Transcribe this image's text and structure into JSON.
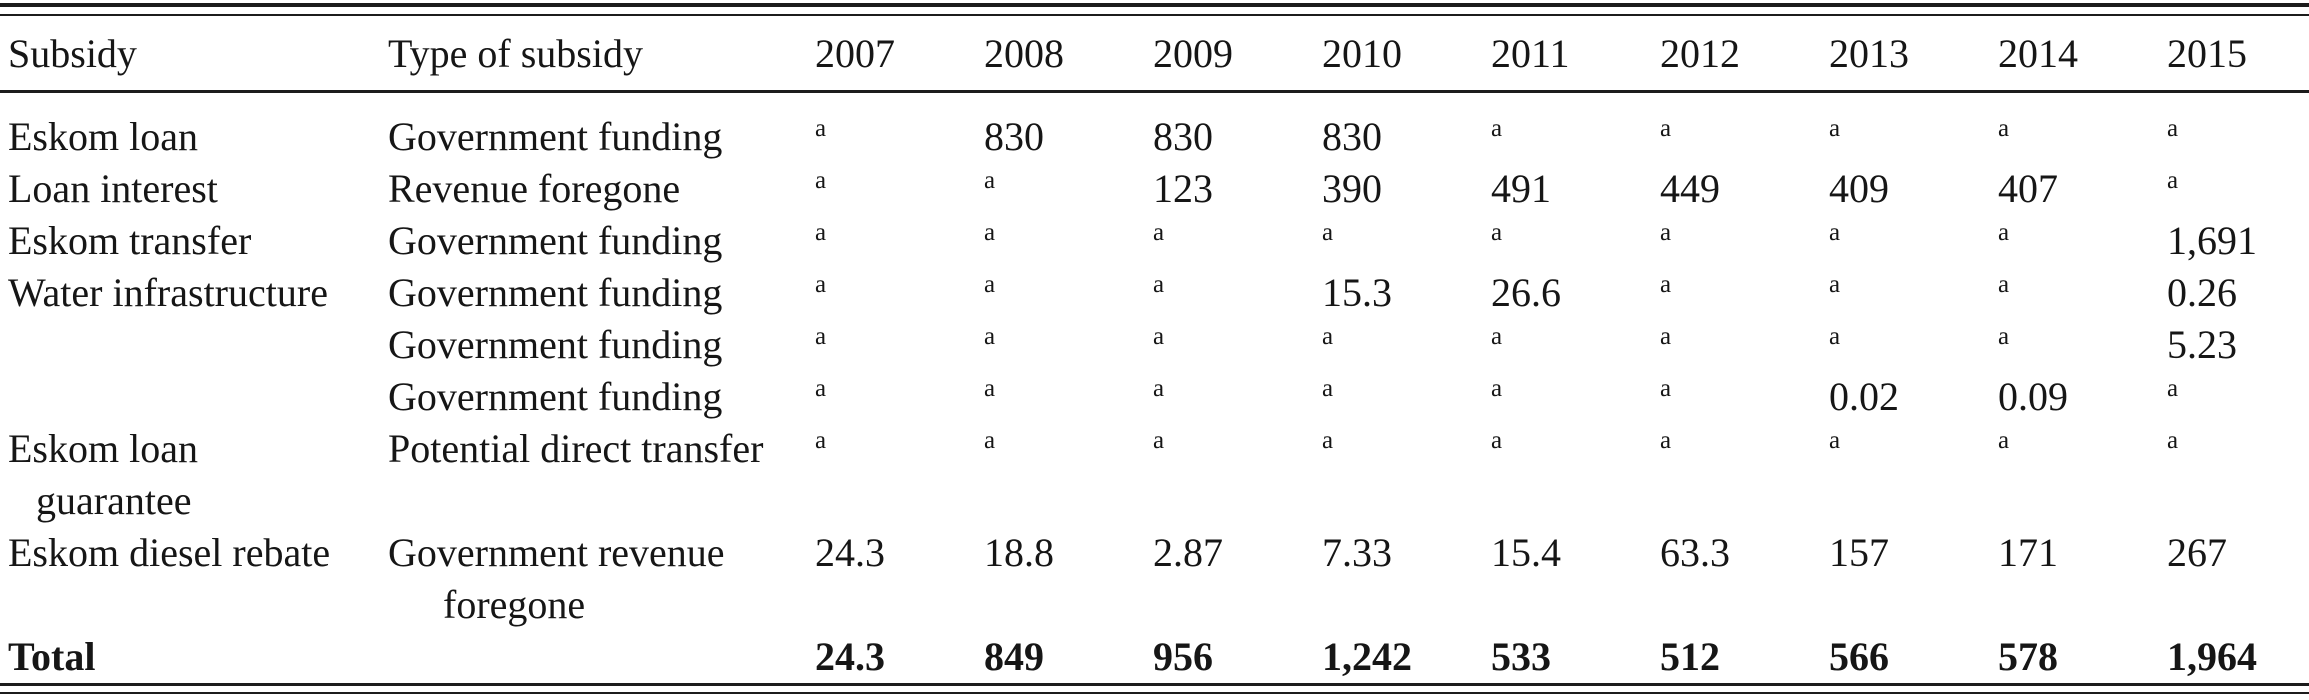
{
  "table": {
    "footnote_marker": "a",
    "columns": [
      "Subsidy",
      "Type of subsidy",
      "2007",
      "2008",
      "2009",
      "2010",
      "2011",
      "2012",
      "2013",
      "2014",
      "2015"
    ],
    "rows": [
      {
        "subsidy": "Eskom loan",
        "type": "Government funding",
        "values": [
          "a",
          "830",
          "830",
          "830",
          "a",
          "a",
          "a",
          "a",
          "a"
        ]
      },
      {
        "subsidy": "Loan interest",
        "type": "Revenue foregone",
        "values": [
          "a",
          "a",
          "123",
          "390",
          "491",
          "449",
          "409",
          "407",
          "a"
        ]
      },
      {
        "subsidy": "Eskom transfer",
        "type": "Government funding",
        "values": [
          "a",
          "a",
          "a",
          "a",
          "a",
          "a",
          "a",
          "a",
          "1,691"
        ]
      },
      {
        "subsidy": "Water infrastructure",
        "type": "Government funding",
        "values": [
          "a",
          "a",
          "a",
          "15.3",
          "26.6",
          "a",
          "a",
          "a",
          "0.26"
        ]
      },
      {
        "subsidy": "",
        "type": "Government funding",
        "values": [
          "a",
          "a",
          "a",
          "a",
          "a",
          "a",
          "a",
          "a",
          "5.23"
        ]
      },
      {
        "subsidy": "",
        "type": "Government funding",
        "values": [
          "a",
          "a",
          "a",
          "a",
          "a",
          "a",
          "0.02",
          "0.09",
          "a"
        ]
      },
      {
        "subsidy": "Eskom loan\nguarantee",
        "type": "Potential direct transfer",
        "values": [
          "a",
          "a",
          "a",
          "a",
          "a",
          "a",
          "a",
          "a",
          "a"
        ]
      },
      {
        "subsidy": "Eskom diesel rebate",
        "type": "Government revenue\nforegone",
        "values": [
          "24.3",
          "18.8",
          "2.87",
          "7.33",
          "15.4",
          "63.3",
          "157",
          "171",
          "267"
        ]
      }
    ],
    "total_row": {
      "label": "Total",
      "values": [
        "24.3",
        "849",
        "956",
        "1,242",
        "533",
        "512",
        "566",
        "578",
        "1,964"
      ]
    }
  }
}
